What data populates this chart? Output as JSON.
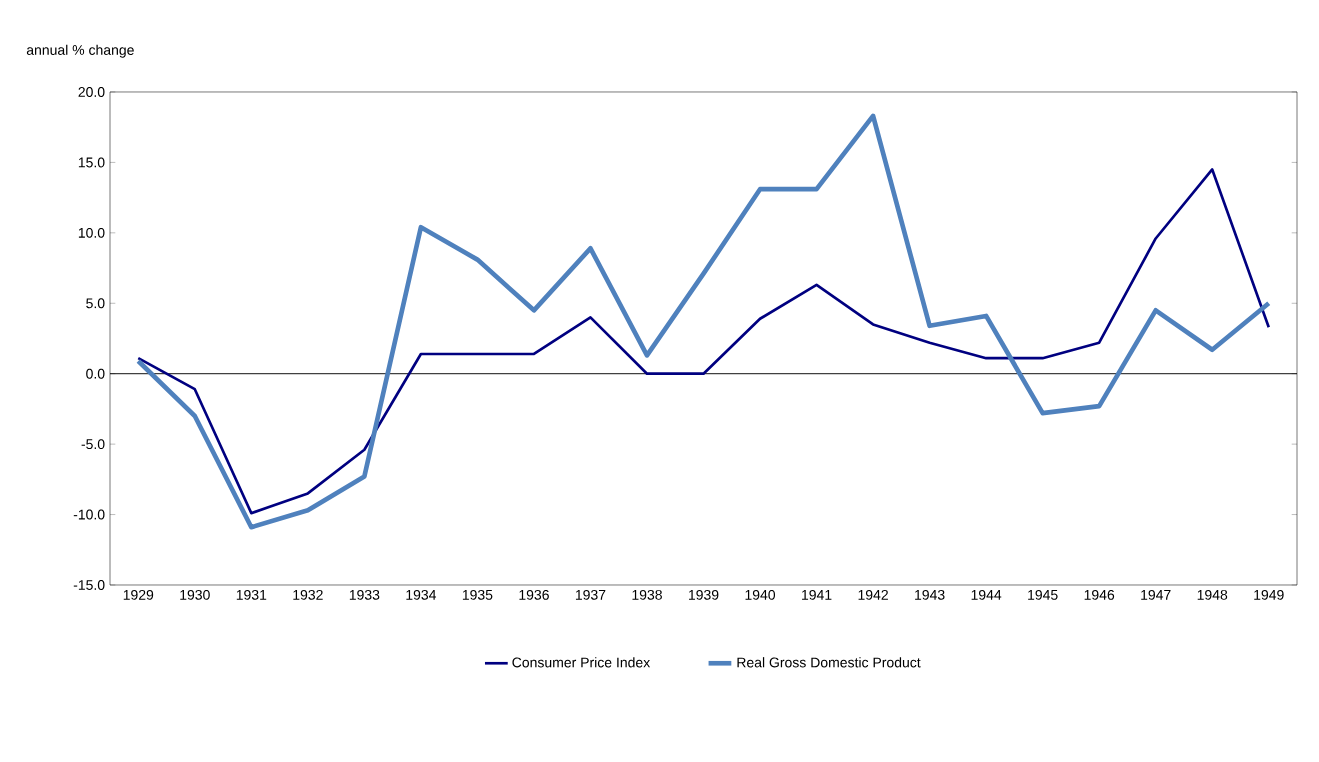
{
  "chart_data": {
    "type": "line",
    "ylabel": "annual % change",
    "categories": [
      "1929",
      "1930",
      "1931",
      "1932",
      "1933",
      "1934",
      "1935",
      "1936",
      "1937",
      "1938",
      "1939",
      "1940",
      "1941",
      "1942",
      "1943",
      "1944",
      "1945",
      "1946",
      "1947",
      "1948",
      "1949"
    ],
    "series": [
      {
        "name": "Consumer Price Index",
        "color": "#000080",
        "values": [
          1.1,
          -1.1,
          -9.9,
          -8.5,
          -5.4,
          1.4,
          1.4,
          1.4,
          4.0,
          0.0,
          0.0,
          3.9,
          6.3,
          3.5,
          2.2,
          1.1,
          1.1,
          2.2,
          9.6,
          14.5,
          3.3
        ]
      },
      {
        "name": "Real Gross Domestic Product",
        "color": "#4f81bd",
        "values": [
          0.9,
          -3.0,
          -10.9,
          -9.7,
          -7.3,
          10.4,
          8.1,
          4.5,
          8.9,
          1.3,
          7.1,
          13.1,
          13.1,
          18.3,
          3.4,
          4.1,
          -2.8,
          -2.3,
          4.5,
          1.7,
          5.0
        ]
      }
    ],
    "ylim": [
      -15,
      20
    ],
    "yticks": [
      {
        "value": -15,
        "label": "-15.0"
      },
      {
        "value": -10,
        "label": "-10.0"
      },
      {
        "value": -5,
        "label": "-5.0"
      },
      {
        "value": 0,
        "label": "0.0"
      },
      {
        "value": 5,
        "label": "5.0"
      },
      {
        "value": 10,
        "label": "10.0"
      },
      {
        "value": 15,
        "label": "15.0"
      },
      {
        "value": 20,
        "label": "20.0"
      }
    ],
    "ref_lines": [
      {
        "axis": "y",
        "value": 0,
        "color": "#000000"
      }
    ],
    "grid": false,
    "legend": "bottom",
    "marker": "none",
    "line_style": "solid"
  }
}
